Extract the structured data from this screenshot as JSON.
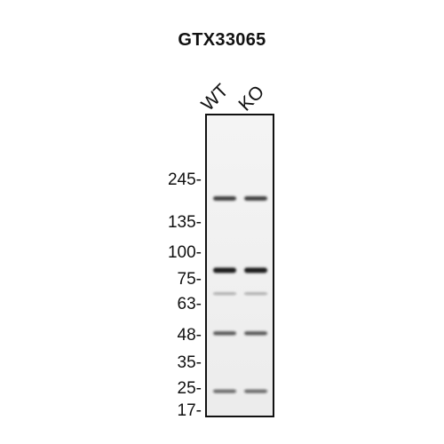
{
  "title": "GTX33065",
  "lanes": [
    {
      "label": "WT"
    },
    {
      "label": "KO"
    }
  ],
  "markers": [
    {
      "label": "245-",
      "kda": 245
    },
    {
      "label": "135-",
      "kda": 135
    },
    {
      "label": "100-",
      "kda": 100
    },
    {
      "label": "75-",
      "kda": 75
    },
    {
      "label": "63-",
      "kda": 63
    },
    {
      "label": "48-",
      "kda": 48
    },
    {
      "label": "35-",
      "kda": 35
    },
    {
      "label": "25-",
      "kda": 25
    },
    {
      "label": "17-",
      "kda": 17
    }
  ],
  "bands": [
    {
      "kda": 190,
      "intensity": 0.75,
      "lanes": [
        0,
        1
      ]
    },
    {
      "kda": 83,
      "intensity": 1.0,
      "lanes": [
        0,
        1
      ]
    },
    {
      "kda": 68,
      "intensity": 0.15,
      "lanes": [
        0,
        1
      ]
    },
    {
      "kda": 49,
      "intensity": 0.6,
      "lanes": [
        0,
        1
      ]
    },
    {
      "kda": 24,
      "intensity": 0.5,
      "lanes": [
        0,
        1
      ]
    }
  ],
  "colors": {
    "band": "#1a1a1a",
    "membrane": "#f2f2f2",
    "border": "#111111"
  }
}
